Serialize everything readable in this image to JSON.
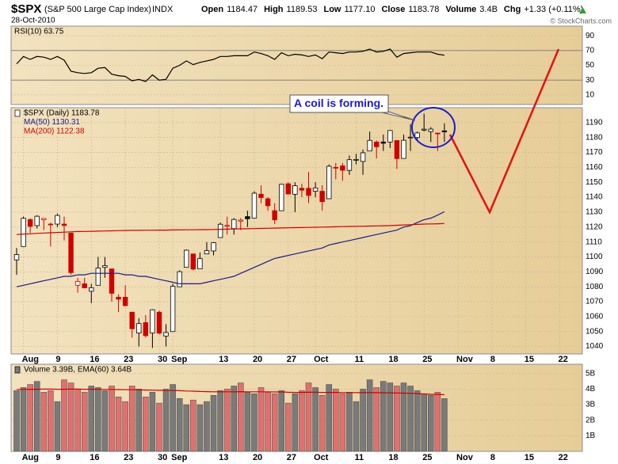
{
  "header": {
    "symbol": "$SPX",
    "name": "(S&P 500 Large Cap Index)",
    "exchange": "INDX",
    "date": "28-Oct-2010",
    "quote": [
      {
        "label": "Open",
        "value": "1184.47"
      },
      {
        "label": "High",
        "value": "1189.53"
      },
      {
        "label": "Low",
        "value": "1177.10"
      },
      {
        "label": "Close",
        "value": "1183.78"
      },
      {
        "label": "Volume",
        "value": "3.4B"
      },
      {
        "label": "Chg",
        "value": "+1.33 (+0.11%)"
      }
    ],
    "copyright": "© StockCharts.com"
  },
  "chart_data": [
    {
      "type": "line",
      "series": [
        {
          "name": "RSI(10) 63.75",
          "color": "#000000",
          "values": [
            52,
            62,
            58,
            62,
            61,
            58,
            62,
            57,
            42,
            40,
            39,
            40,
            46,
            47,
            38,
            36,
            35,
            29,
            31,
            28,
            37,
            30,
            31,
            46,
            50,
            56,
            51,
            54,
            56,
            58,
            62,
            62,
            63,
            63,
            63,
            68,
            66,
            63,
            58,
            67,
            63,
            65,
            64,
            62,
            64,
            59,
            68,
            67,
            66,
            68,
            68,
            69,
            72,
            68,
            69,
            72,
            61,
            66,
            67,
            68,
            68,
            68,
            65,
            63.75
          ]
        }
      ],
      "ylim": [
        -3,
        103
      ],
      "yticks": [
        90,
        70,
        50,
        30,
        10
      ],
      "grid": true,
      "levels": [
        70,
        30
      ]
    },
    {
      "type": "candlestick",
      "categories": [
        null,
        "Aug",
        null,
        null,
        null,
        null,
        "9",
        null,
        null,
        null,
        null,
        "16",
        null,
        null,
        null,
        null,
        "23",
        null,
        null,
        null,
        null,
        "30",
        null,
        "Sep",
        null,
        null,
        null,
        null,
        null,
        null,
        "13",
        null,
        null,
        null,
        null,
        "20",
        null,
        null,
        null,
        null,
        "27",
        null,
        null,
        null,
        "Oct",
        null,
        null,
        null,
        null,
        null,
        "11",
        null,
        null,
        null,
        null,
        "18",
        null,
        null,
        null,
        null,
        "25",
        null,
        null,
        null,
        null,
        "Nov",
        null,
        null,
        null,
        null,
        "8",
        null,
        null,
        null,
        null,
        "15",
        null,
        null,
        null,
        null,
        "22",
        null,
        null
      ],
      "series": [
        {
          "name": "$SPX (Daily) 1183.78",
          "up_color": "#000000",
          "down_color": "#d00000",
          "open": [
            1098,
            1107,
            1125,
            1121,
            1125,
            1122,
            1122,
            1122,
            1116,
            1081,
            1082,
            1077,
            1081,
            1093,
            1092,
            1073,
            1073,
            1063,
            1049,
            1056,
            1049,
            1063,
            1047,
            1050,
            1080,
            1093,
            1102,
            1092,
            1102,
            1104,
            1113,
            1121,
            1119,
            1124,
            1127,
            1126,
            1142,
            1139,
            1131,
            1131,
            1149,
            1142,
            1146,
            1146,
            1144,
            1144,
            1139,
            1160,
            1161,
            1158,
            1165,
            1164,
            1171,
            1177,
            1177,
            1177,
            1178,
            1166,
            1180,
            1180,
            1185,
            1184,
            1183,
            1184.47,
            null,
            null,
            null,
            null,
            null,
            null,
            null,
            null,
            null,
            null,
            null,
            null,
            null,
            null,
            null,
            null,
            null,
            null,
            null
          ],
          "high": [
            1106,
            1127,
            1126,
            1128,
            1126,
            1123,
            1129,
            1127,
            1116,
            1086,
            1086,
            1082,
            1100,
            1100,
            1092,
            1075,
            1081,
            1063,
            1059,
            1061,
            1065,
            1064,
            1055,
            1082,
            1091,
            1105,
            1102,
            1103,
            1110,
            1110,
            1123,
            1127,
            1126,
            1126,
            1131,
            1144,
            1148,
            1140,
            1136,
            1149,
            1150,
            1150,
            1149,
            1157,
            1150,
            1148,
            1162,
            1163,
            1163,
            1168,
            1169,
            1172,
            1184,
            1178,
            1182,
            1185,
            1178,
            1182,
            1189,
            1184,
            1196,
            1187,
            1183,
            1189.53,
            null,
            null,
            null,
            null,
            null,
            null,
            null,
            null,
            null,
            null,
            null,
            null,
            null,
            null,
            null,
            null,
            null,
            null,
            null
          ],
          "low": [
            1088,
            1107,
            1116,
            1119,
            1118,
            1107,
            1120,
            1111,
            1088,
            1076,
            1079,
            1069,
            1081,
            1086,
            1070,
            1063,
            1067,
            1046,
            1040,
            1046,
            1039,
            1048,
            1040,
            1050,
            1080,
            1093,
            1091,
            1092,
            1102,
            1101,
            1113,
            1115,
            1115,
            1118,
            1120,
            1126,
            1136,
            1131,
            1122,
            1131,
            1142,
            1130,
            1140,
            1136,
            1140,
            1131,
            1139,
            1152,
            1151,
            1155,
            1162,
            1155,
            1171,
            1166,
            1171,
            1173,
            1159,
            1166,
            1171,
            1178,
            1184,
            1177,
            1171,
            1177.1,
            null,
            null,
            null,
            null,
            null,
            null,
            null,
            null,
            null,
            null,
            null,
            null,
            null,
            null,
            null,
            null,
            null,
            null,
            null
          ],
          "close": [
            1101.6,
            1125.86,
            1120.46,
            1127.24,
            1125.81,
            1121.64,
            1127.79,
            1121.06,
            1089.47,
            1083.61,
            1079.25,
            1079.38,
            1092.54,
            1094.16,
            1075.63,
            1071.69,
            1067.36,
            1051.87,
            1055.33,
            1047.22,
            1064.59,
            1048.92,
            1049.33,
            1080.29,
            1090.1,
            1104.51,
            1091.84,
            1098.87,
            1104.18,
            1109.55,
            1121.9,
            1121.1,
            1125.07,
            1124.66,
            1125.59,
            1142.71,
            1139.78,
            1134.28,
            1124.83,
            1148.67,
            1142.16,
            1147.7,
            1144.73,
            1141.2,
            1146.24,
            1137.03,
            1160.75,
            1159.97,
            1158.06,
            1165.15,
            1165.32,
            1169.77,
            1178.1,
            1173.81,
            1176.19,
            1184.71,
            1165.9,
            1178.17,
            1180.26,
            1183.08,
            1185.62,
            1185.64,
            1182.45,
            1183.78,
            null,
            null,
            null,
            null,
            null,
            null,
            null,
            null,
            null,
            null,
            null,
            null,
            null,
            null,
            null,
            null,
            null,
            null,
            null
          ]
        },
        {
          "name": "MA(50) 1130.31",
          "type": "line",
          "color": "#1a1a8c",
          "values": [
            1080,
            1081,
            1082,
            1083,
            1084,
            1085,
            1086,
            1087,
            1087,
            1088,
            1088,
            1089,
            1089,
            1089,
            1089,
            1089,
            1088,
            1088,
            1087,
            1087,
            1086,
            1085,
            1084,
            1083,
            1082,
            1082,
            1082,
            1082,
            1083,
            1084,
            1085,
            1086,
            1087,
            1089,
            1091,
            1093,
            1095,
            1097,
            1099,
            1100,
            1101,
            1102,
            1103,
            1104,
            1105,
            1106,
            1108,
            1109,
            1110,
            1111,
            1112,
            1113,
            1114,
            1115,
            1116,
            1117,
            1118,
            1120,
            1121,
            1123,
            1125,
            1126,
            1128,
            1130.31,
            null,
            null,
            null,
            null,
            null,
            null,
            null,
            null,
            null,
            null,
            null,
            null,
            null,
            null,
            null,
            null,
            null,
            null,
            null
          ]
        },
        {
          "name": "MA(200) 1122.38",
          "type": "line",
          "color": "#d00000",
          "values": [
            1115.0,
            1115.3,
            1115.5,
            1115.8,
            1116.0,
            1116.2,
            1116.4,
            1116.6,
            1116.8,
            1117.0,
            1117.1,
            1117.2,
            1117.3,
            1117.4,
            1117.5,
            1117.6,
            1117.7,
            1117.8,
            1117.8,
            1117.9,
            1117.9,
            1118.0,
            1118.0,
            1118.1,
            1118.1,
            1118.2,
            1118.2,
            1118.3,
            1118.3,
            1118.4,
            1118.5,
            1118.6,
            1118.7,
            1118.8,
            1118.9,
            1119.0,
            1119.1,
            1119.2,
            1119.3,
            1119.4,
            1119.5,
            1119.6,
            1119.7,
            1119.8,
            1119.9,
            1120.0,
            1120.1,
            1120.2,
            1120.3,
            1120.4,
            1120.5,
            1120.6,
            1120.7,
            1120.8,
            1120.9,
            1121.0,
            1121.2,
            1121.4,
            1121.6,
            1121.8,
            1122.0,
            1122.1,
            1122.2,
            1122.38,
            null,
            null,
            null,
            null,
            null,
            null,
            null,
            null,
            null,
            null,
            null,
            null,
            null,
            null,
            null,
            null,
            null,
            null,
            null
          ]
        }
      ],
      "ylim": [
        1035,
        1200
      ],
      "yticks": [
        1190,
        1180,
        1170,
        1160,
        1150,
        1140,
        1130,
        1120,
        1110,
        1100,
        1090,
        1080,
        1070,
        1060,
        1050,
        1040
      ],
      "grid": true,
      "annotation": "A coil is forming."
    },
    {
      "type": "bar",
      "series": [
        {
          "name": "Volume 3.39B, EMA(60) 3.64B",
          "up_color": "#7a7a7a",
          "down_color": "#e07070",
          "values": [
            3.9,
            4.1,
            4.3,
            4.5,
            3.8,
            3.9,
            3.2,
            4.6,
            4.4,
            4.0,
            3.8,
            4.2,
            4.1,
            3.9,
            4.2,
            3.5,
            3.2,
            4.2,
            4.0,
            3.5,
            3.8,
            3.1,
            4.0,
            4.3,
            3.4,
            3.0,
            3.3,
            3.0,
            3.2,
            3.6,
            3.9,
            4.0,
            4.2,
            4.4,
            3.8,
            3.7,
            4.1,
            3.8,
            3.7,
            3.9,
            3.1,
            3.7,
            3.9,
            4.4,
            4.1,
            3.6,
            4.3,
            4.0,
            3.7,
            3.8,
            3.2,
            4.0,
            4.6,
            4.1,
            4.5,
            4.4,
            4.2,
            4.4,
            4.2,
            3.9,
            3.7,
            3.6,
            3.8,
            3.39
          ]
        },
        {
          "type": "line",
          "color": "#d00000",
          "values": [
            3.98,
            3.98,
            3.99,
            3.99,
            4.0,
            4.0,
            3.99,
            3.99,
            4.0,
            4.0,
            3.99,
            3.99,
            3.99,
            3.98,
            3.98,
            3.97,
            3.96,
            3.96,
            3.95,
            3.94,
            3.93,
            3.92,
            3.91,
            3.91,
            3.9,
            3.88,
            3.87,
            3.85,
            3.84,
            3.83,
            3.83,
            3.83,
            3.83,
            3.84,
            3.83,
            3.83,
            3.83,
            3.83,
            3.82,
            3.82,
            3.8,
            3.79,
            3.79,
            3.8,
            3.8,
            3.79,
            3.79,
            3.79,
            3.78,
            3.78,
            3.77,
            3.77,
            3.77,
            3.77,
            3.76,
            3.76,
            3.75,
            3.74,
            3.73,
            3.71,
            3.69,
            3.67,
            3.66,
            3.64
          ]
        }
      ],
      "ylim": [
        0,
        5.6
      ],
      "yticks": [
        {
          "value": 5,
          "label": "5B"
        },
        {
          "value": 4,
          "label": "4B"
        },
        {
          "value": 3,
          "label": "3B"
        },
        {
          "value": 2,
          "label": "2B"
        },
        {
          "value": 1,
          "label": "1B"
        }
      ],
      "grid": true
    }
  ]
}
